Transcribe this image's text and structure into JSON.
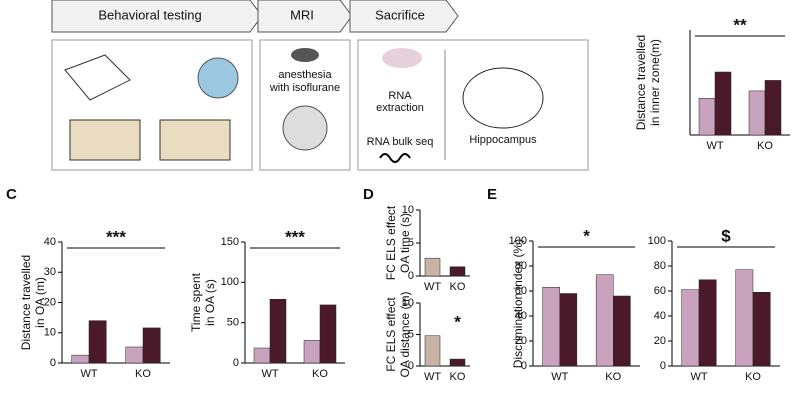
{
  "workflow": {
    "steps": [
      "Behavioral testing",
      "MRI",
      "Sacrifice"
    ],
    "mri_note": [
      "anesthesia",
      "with isoflurane"
    ],
    "rna_extraction": [
      "RNA",
      "extraction"
    ],
    "rna_seq": "RNA bulk seq",
    "region": "Hippocampus"
  },
  "panels": [
    "C",
    "D",
    "E"
  ],
  "chart_data": [
    {
      "type": "bar",
      "ylabel": [
        "Distance travelled",
        "in inner zone(m)"
      ],
      "categories": [
        "WT",
        "KO"
      ],
      "ylim": [
        0,
        10
      ],
      "yticks": [],
      "annotation": "**",
      "series": [
        {
          "color": "#c9a3bd",
          "values": [
            3.5,
            4.2
          ]
        },
        {
          "color": "#4a1a2a",
          "values": [
            6,
            5.2
          ]
        }
      ]
    },
    {
      "type": "bar",
      "ylabel": [
        "Distance travelled",
        "in OA (m)"
      ],
      "categories": [
        "WT",
        "KO"
      ],
      "ylim": [
        0,
        40
      ],
      "yticks": [
        0,
        10,
        20,
        30,
        40
      ],
      "annotation": "***",
      "series": [
        {
          "color": "#c9a3bd",
          "values": [
            2.6,
            5.3
          ]
        },
        {
          "color": "#4a1a2a",
          "values": [
            14,
            11.6
          ]
        }
      ]
    },
    {
      "type": "bar",
      "ylabel": [
        "Time spent",
        "in OA (s)"
      ],
      "categories": [
        "WT",
        "KO"
      ],
      "ylim": [
        0,
        150
      ],
      "yticks": [
        0,
        50,
        100,
        150
      ],
      "annotation": "***",
      "series": [
        {
          "color": "#c9a3bd",
          "values": [
            18.6,
            28
          ]
        },
        {
          "color": "#4a1a2a",
          "values": [
            79,
            72
          ]
        }
      ]
    },
    {
      "type": "bar",
      "ylabel": [
        "FC ELS effect",
        "OA time (s)"
      ],
      "categories": [
        "WT",
        "KO"
      ],
      "ylim": [
        0,
        10
      ],
      "yticks": [
        0,
        5,
        10
      ],
      "values": [
        2.7,
        1.4
      ],
      "colors": [
        "#c9b2a6",
        "#4a1a2a"
      ]
    },
    {
      "type": "bar",
      "ylabel": [
        "FC ELS effect",
        "OA distance (m)"
      ],
      "categories": [
        "WT",
        "KO"
      ],
      "ylim": [
        0,
        10
      ],
      "yticks": [
        0,
        5,
        10
      ],
      "annotation": "*",
      "values": [
        4.8,
        1.1
      ],
      "colors": [
        "#c9b2a6",
        "#4a1a2a"
      ]
    },
    {
      "type": "bar",
      "ylabel": [
        "Discrimination index (%)"
      ],
      "categories": [
        "WT",
        "KO"
      ],
      "ylim": [
        0,
        100
      ],
      "yticks": [
        0,
        20,
        40,
        60,
        80,
        100
      ],
      "annotation": "*",
      "series": [
        {
          "color": "#c9a3bd",
          "values": [
            63,
            73
          ]
        },
        {
          "color": "#4a1a2a",
          "values": [
            58,
            56
          ]
        }
      ]
    },
    {
      "type": "bar",
      "categories": [
        "WT",
        "KO"
      ],
      "ylim": [
        0,
        100
      ],
      "yticks": [
        0,
        20,
        40,
        60,
        80,
        100
      ],
      "annotation": "$",
      "series": [
        {
          "color": "#c9a3bd",
          "values": [
            61,
            77
          ]
        },
        {
          "color": "#4a1a2a",
          "values": [
            69,
            59
          ]
        }
      ]
    }
  ]
}
